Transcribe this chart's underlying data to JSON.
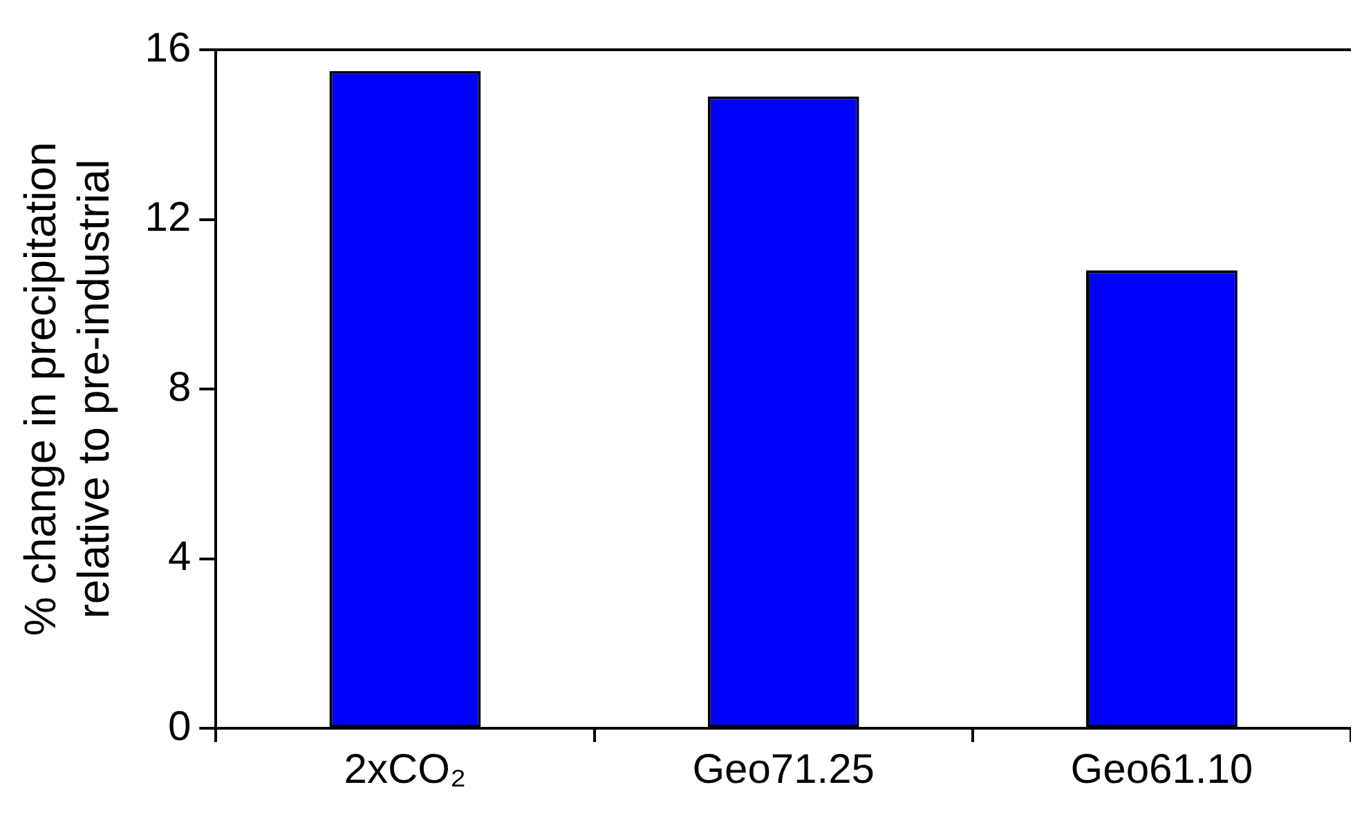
{
  "chart_data": {
    "type": "bar",
    "ylabel": "% change in precipitation\nrelative to pre-industrial",
    "categories": [
      "2xCO₂",
      "Geo71.25",
      "Geo61.10"
    ],
    "values": [
      15.5,
      14.9,
      10.8
    ],
    "color": "#0000ff",
    "ylim": [
      0,
      16
    ],
    "yticks": [
      0,
      4,
      8,
      12,
      16
    ],
    "grid": false,
    "legend": false
  }
}
